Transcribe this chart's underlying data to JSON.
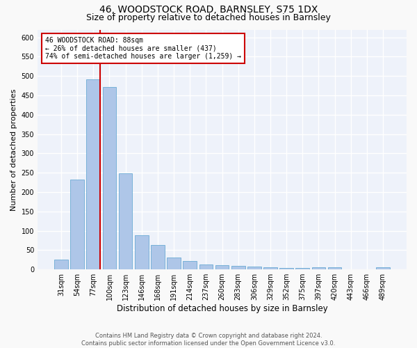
{
  "title": "46, WOODSTOCK ROAD, BARNSLEY, S75 1DX",
  "subtitle": "Size of property relative to detached houses in Barnsley",
  "xlabel": "Distribution of detached houses by size in Barnsley",
  "ylabel": "Number of detached properties",
  "categories": [
    "31sqm",
    "54sqm",
    "77sqm",
    "100sqm",
    "123sqm",
    "146sqm",
    "168sqm",
    "191sqm",
    "214sqm",
    "237sqm",
    "260sqm",
    "283sqm",
    "306sqm",
    "329sqm",
    "352sqm",
    "375sqm",
    "397sqm",
    "420sqm",
    "443sqm",
    "466sqm",
    "489sqm"
  ],
  "values": [
    25,
    232,
    491,
    472,
    249,
    88,
    63,
    31,
    22,
    13,
    11,
    9,
    7,
    5,
    4,
    4,
    6,
    6,
    1,
    1,
    5
  ],
  "bar_color": "#aec6e8",
  "bar_edge_color": "#6aaad4",
  "vline_x_index": 2,
  "vline_color": "#cc0000",
  "annotation_text": "46 WOODSTOCK ROAD: 88sqm\n← 26% of detached houses are smaller (437)\n74% of semi-detached houses are larger (1,259) →",
  "annotation_box_color": "#ffffff",
  "annotation_box_edge_color": "#cc0000",
  "ylim": [
    0,
    620
  ],
  "yticks": [
    0,
    50,
    100,
    150,
    200,
    250,
    300,
    350,
    400,
    450,
    500,
    550,
    600
  ],
  "footer": "Contains HM Land Registry data © Crown copyright and database right 2024.\nContains public sector information licensed under the Open Government Licence v3.0.",
  "bg_color": "#eef2fa",
  "grid_color": "#ffffff",
  "fig_bg_color": "#f9f9f9",
  "title_fontsize": 10,
  "subtitle_fontsize": 9,
  "tick_fontsize": 7,
  "ylabel_fontsize": 8,
  "xlabel_fontsize": 8.5,
  "footer_fontsize": 6,
  "annotation_fontsize": 7
}
